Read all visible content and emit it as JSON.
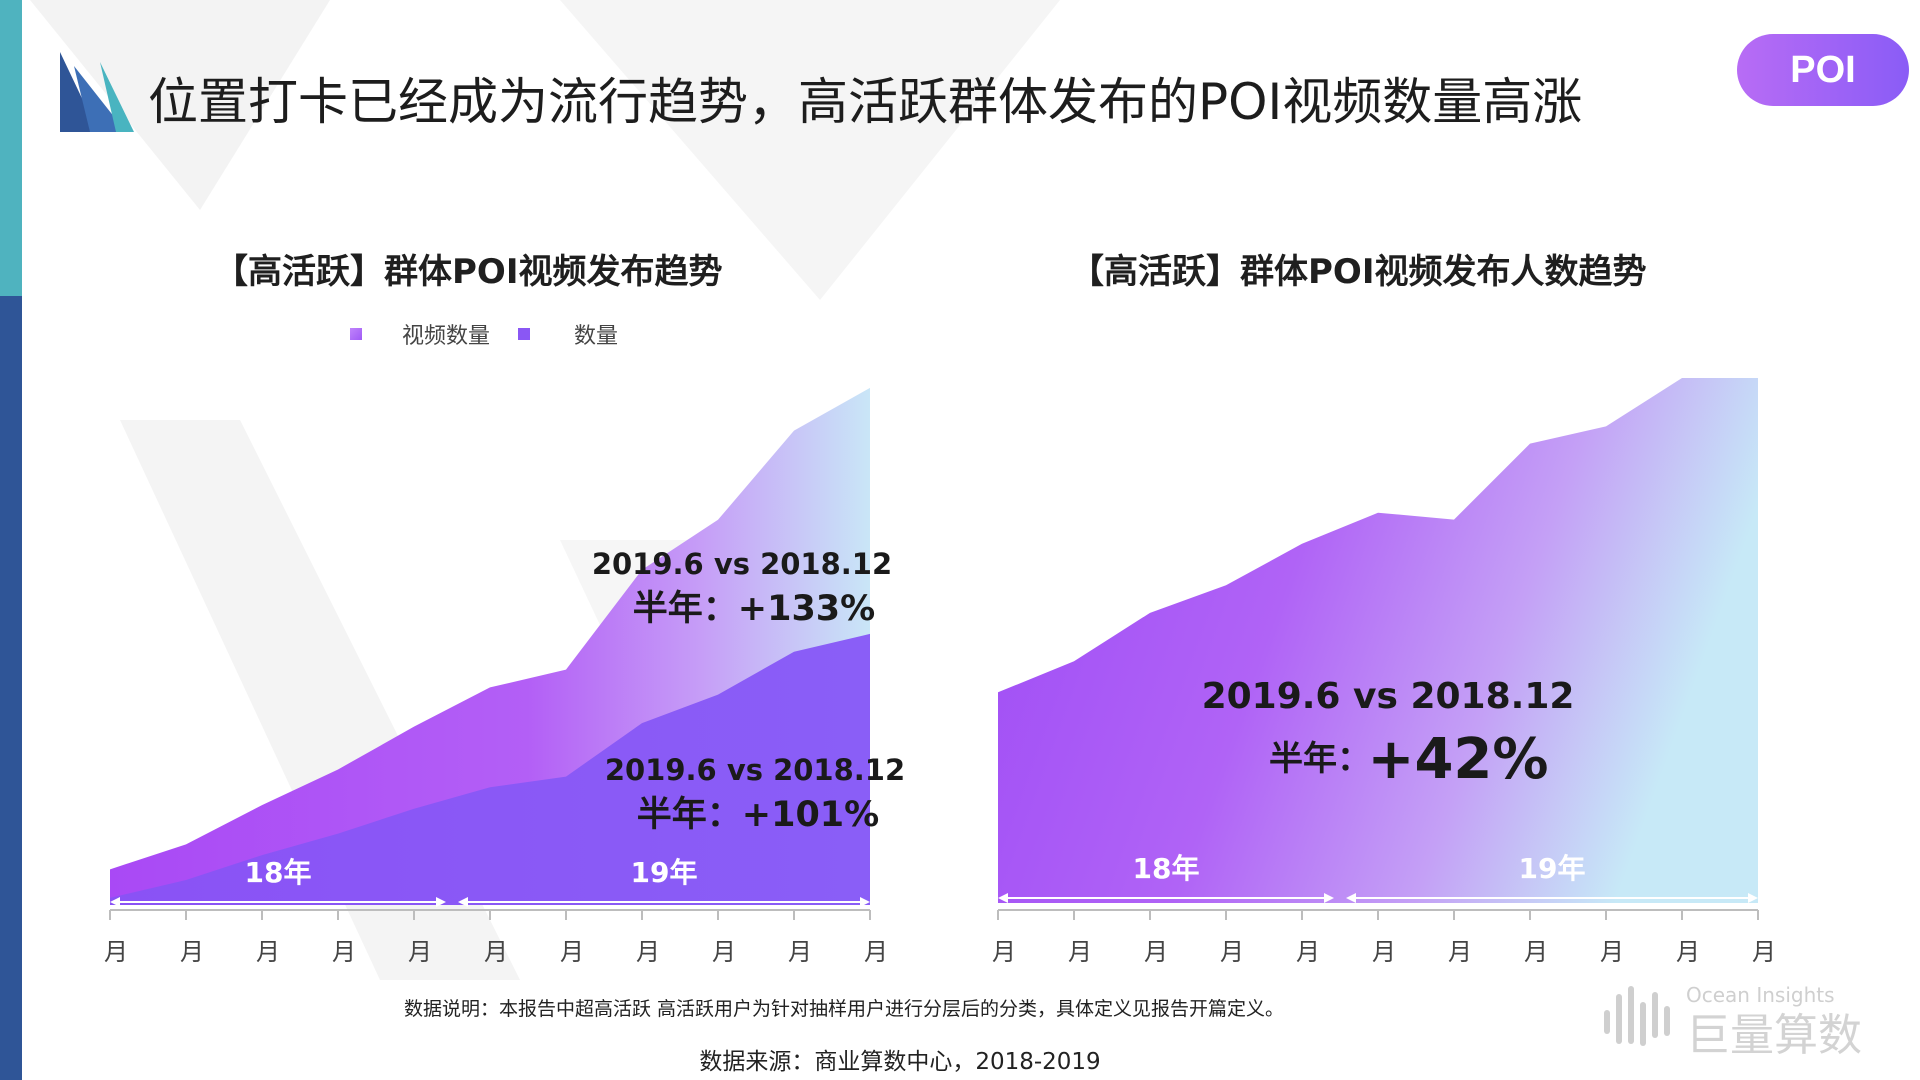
{
  "title": "位置打卡已经成为流行趋势，高活跃群体发布的POI视频数量高涨",
  "badge": "POI",
  "chart_data": [
    {
      "type": "area",
      "title": "【高活跃】群体POI视频发布趋势",
      "legend": [
        "视频数量",
        "数量"
      ],
      "x": [
        "月",
        "月",
        "月",
        "月",
        "月",
        "月",
        "月",
        "月",
        "月",
        "月",
        "月"
      ],
      "series": [
        {
          "name": "视频数量",
          "values": [
            10,
            17,
            28,
            38,
            50,
            61,
            66,
            94,
            108,
            133,
            145
          ]
        },
        {
          "name": "数量",
          "values": [
            2,
            7,
            14,
            20,
            27,
            33,
            36,
            51,
            59,
            71,
            76
          ]
        }
      ],
      "year_spans": [
        {
          "label": "18年"
        },
        {
          "label": "19年"
        }
      ],
      "annotations": [
        {
          "line1": "2019.6 vs 2018.12",
          "line2": "半年：+133%"
        },
        {
          "line1": "2019.6 vs 2018.12",
          "line2": "半年：+101%"
        }
      ],
      "colors": [
        "#b15af5",
        "#8a57f4",
        "#c9e7f7"
      ]
    },
    {
      "type": "area",
      "title": "【高活跃】群体POI视频发布人数趋势",
      "x": [
        "月",
        "月",
        "月",
        "月",
        "月",
        "月",
        "月",
        "月",
        "月",
        "月",
        "月"
      ],
      "series": [
        {
          "values": [
            61,
            70,
            84,
            92,
            104,
            113,
            111,
            133,
            138,
            152,
            152
          ]
        }
      ],
      "year_spans": [
        {
          "label": "18年"
        },
        {
          "label": "19年"
        }
      ],
      "annotations": [
        {
          "line1": "2019.6 vs 2018.12",
          "line2a": "半年：",
          "line2b": "+42%"
        }
      ],
      "colors": [
        "#a24ff4",
        "#c9e7f7"
      ]
    }
  ],
  "notes": {
    "description": "数据说明：本报告中超高活跃 高活跃用户为针对抽样用户进行分层后的分类，具体定义见报告开篇定义。",
    "source": "数据来源：商业算数中心，2018-2019"
  },
  "watermark": {
    "en": "Ocean Insights",
    "cn": "巨量算数"
  }
}
